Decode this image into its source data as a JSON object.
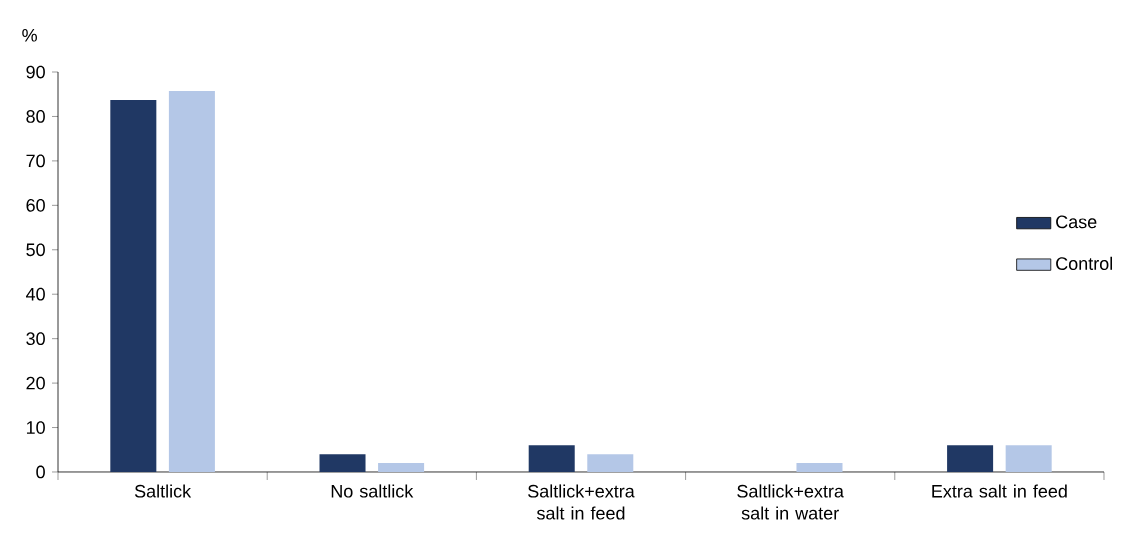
{
  "chart_data": {
    "type": "bar",
    "ylabel": "%",
    "categories": [
      "Saltlick",
      "No saltlick",
      "Saltlick+extra salt in feed",
      "Saltlick+extra salt in water",
      "Extra salt in feed"
    ],
    "series": [
      {
        "name": "Case",
        "color": "#203864",
        "values": [
          83.7,
          4,
          6,
          0,
          6
        ]
      },
      {
        "name": "Control",
        "color": "#b4c7e7",
        "values": [
          85.7,
          2,
          4,
          2,
          6
        ]
      }
    ],
    "ylim": [
      0,
      90
    ],
    "yticks": [
      0,
      10,
      20,
      30,
      40,
      50,
      60,
      70,
      80,
      90
    ],
    "grid": false,
    "legend": "right"
  }
}
